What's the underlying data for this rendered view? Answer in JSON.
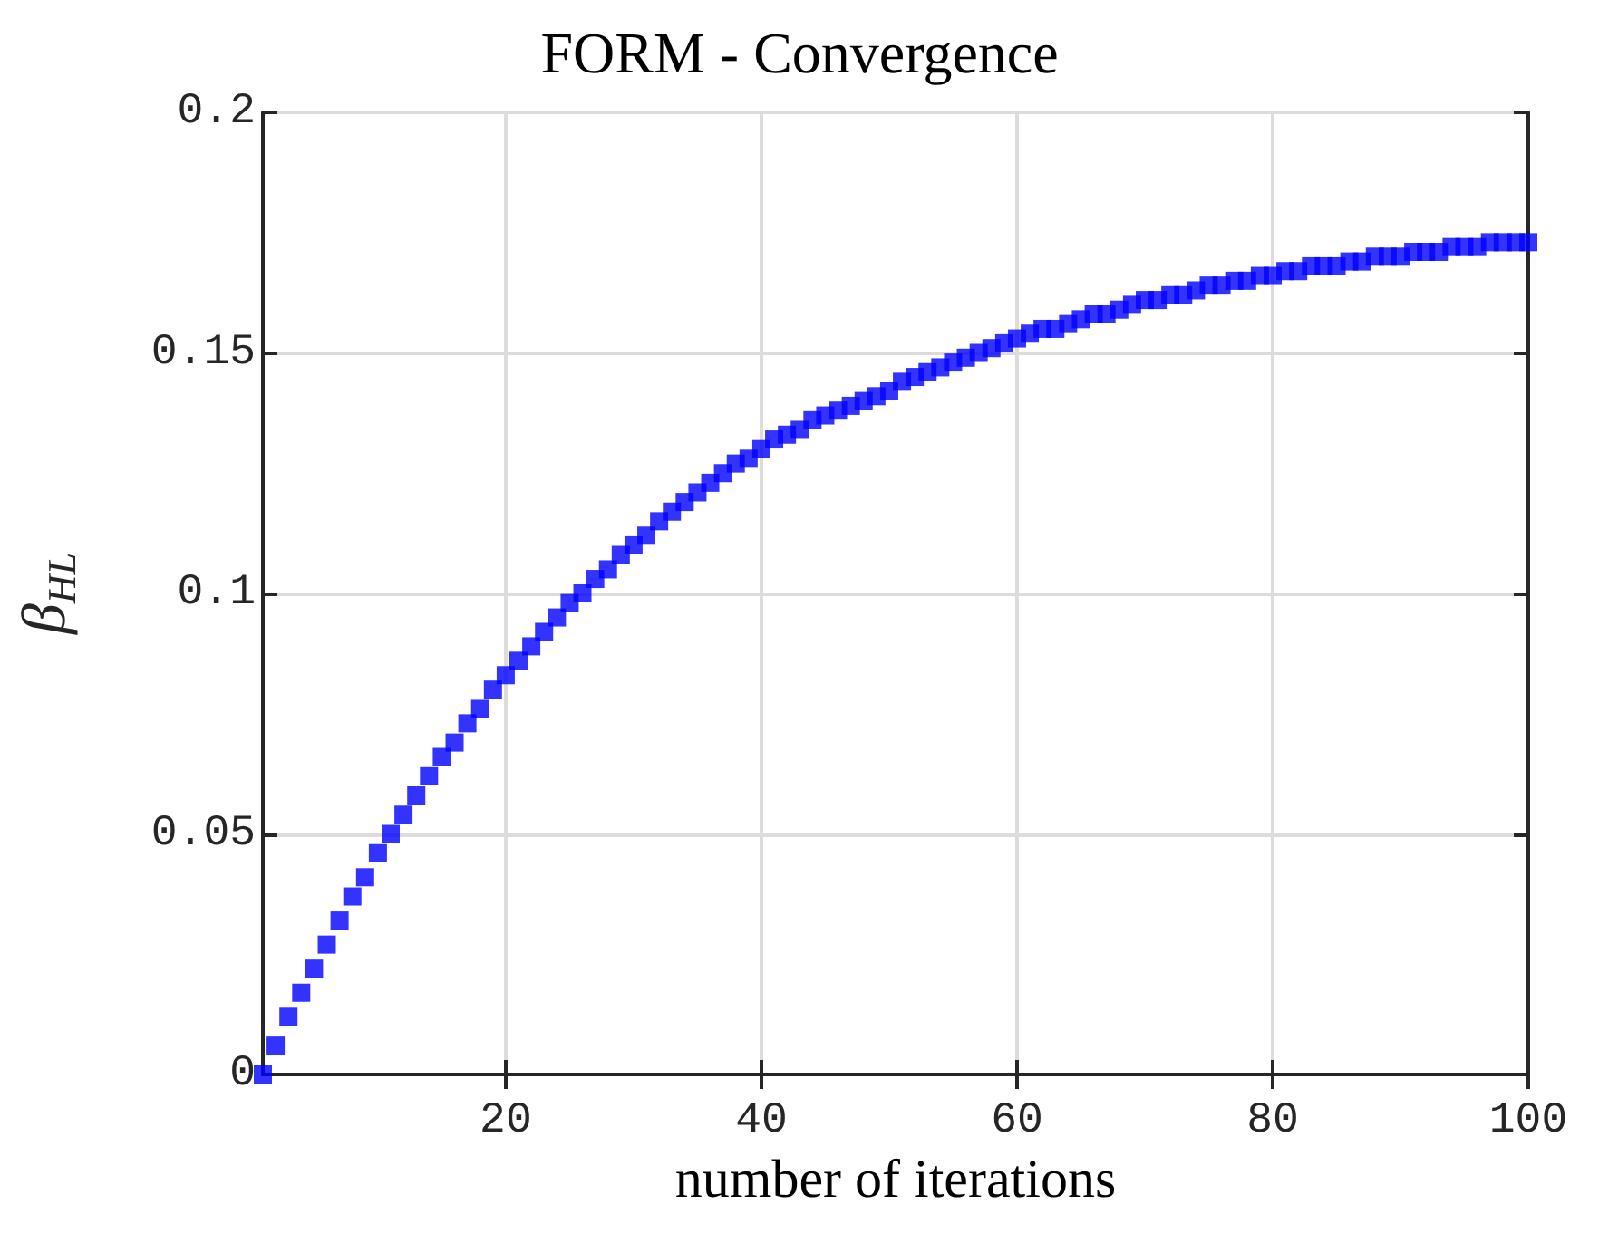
{
  "chart_data": {
    "type": "scatter",
    "title": "FORM - Convergence",
    "xlabel": "number of iterations",
    "ylabel": "β$_{HL}$",
    "x": [
      1,
      2,
      3,
      4,
      5,
      6,
      7,
      8,
      9,
      10,
      11,
      12,
      13,
      14,
      15,
      16,
      17,
      18,
      19,
      20,
      21,
      22,
      23,
      24,
      25,
      26,
      27,
      28,
      29,
      30,
      31,
      32,
      33,
      34,
      35,
      36,
      37,
      38,
      39,
      40,
      41,
      42,
      43,
      44,
      45,
      46,
      47,
      48,
      49,
      50,
      51,
      52,
      53,
      54,
      55,
      56,
      57,
      58,
      59,
      60,
      61,
      62,
      63,
      64,
      65,
      66,
      67,
      68,
      69,
      70,
      71,
      72,
      73,
      74,
      75,
      76,
      77,
      78,
      79,
      80,
      81,
      82,
      83,
      84,
      85,
      86,
      87,
      88,
      89,
      90,
      91,
      92,
      93,
      94,
      95,
      96,
      97,
      98,
      99,
      100
    ],
    "series": [
      {
        "color": "#0000ff",
        "values": [
          0,
          0.006,
          0.012,
          0.017,
          0.022,
          0.027,
          0.032,
          0.037,
          0.041,
          0.046,
          0.05,
          0.054,
          0.058,
          0.062,
          0.066,
          0.069,
          0.073,
          0.076,
          0.08,
          0.083,
          0.086,
          0.089,
          0.092,
          0.095,
          0.098,
          0.1,
          0.103,
          0.105,
          0.108,
          0.11,
          0.112,
          0.115,
          0.117,
          0.119,
          0.121,
          0.123,
          0.125,
          0.127,
          0.128,
          0.13,
          0.132,
          0.133,
          0.134,
          0.136,
          0.137,
          0.138,
          0.139,
          0.14,
          0.141,
          0.142,
          0.144,
          0.145,
          0.146,
          0.147,
          0.148,
          0.149,
          0.15,
          0.151,
          0.152,
          0.153,
          0.154,
          0.155,
          0.155,
          0.156,
          0.157,
          0.158,
          0.158,
          0.159,
          0.16,
          0.161,
          0.161,
          0.162,
          0.162,
          0.163,
          0.164,
          0.164,
          0.165,
          0.165,
          0.166,
          0.166,
          0.167,
          0.167,
          0.168,
          0.168,
          0.168,
          0.169,
          0.169,
          0.17,
          0.17,
          0.17,
          0.171,
          0.171,
          0.171,
          0.172,
          0.172,
          0.172,
          0.173,
          0.173,
          0.173,
          0.173
        ]
      }
    ],
    "xlim": [
      1,
      100
    ],
    "xticks": [
      20,
      40,
      60,
      80,
      100
    ],
    "ylim": [
      0,
      0.2
    ],
    "yticks": [
      0,
      0.05,
      0.1,
      0.15,
      0.2
    ],
    "grid": true,
    "marker": "square"
  }
}
